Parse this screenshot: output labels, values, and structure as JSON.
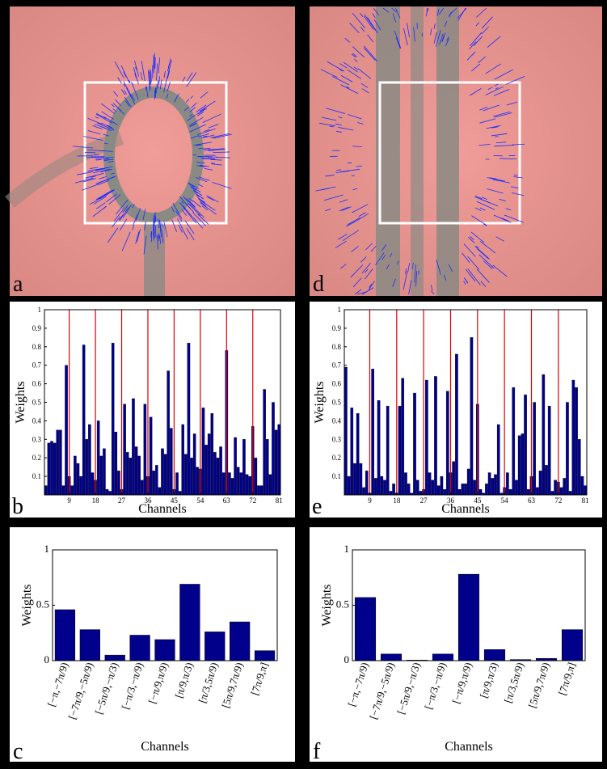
{
  "images": [
    {
      "label": "a"
    },
    {
      "label": "d"
    }
  ],
  "chart_data": [
    {
      "type": "bar",
      "panel_label": "b",
      "xlabel": "Channels",
      "ylabel": "Weights",
      "color": "#00008b",
      "x": [
        1,
        2,
        3,
        4,
        5,
        6,
        7,
        8,
        9,
        10,
        11,
        12,
        13,
        14,
        15,
        16,
        17,
        18,
        19,
        20,
        21,
        22,
        23,
        24,
        25,
        26,
        27,
        28,
        29,
        30,
        31,
        32,
        33,
        34,
        35,
        36,
        37,
        38,
        39,
        40,
        41,
        42,
        43,
        44,
        45,
        46,
        47,
        48,
        49,
        50,
        51,
        52,
        53,
        54,
        55,
        56,
        57,
        58,
        59,
        60,
        61,
        62,
        63,
        64,
        65,
        66,
        67,
        68,
        69,
        70,
        71,
        72,
        73,
        74,
        75,
        76,
        77,
        78,
        79,
        80,
        81
      ],
      "values": [
        0.05,
        0.28,
        0.29,
        0.28,
        0.35,
        0.35,
        0.05,
        0.7,
        0.1,
        0.05,
        0.21,
        0.17,
        0.1,
        0.81,
        0.3,
        0.38,
        0.12,
        0.08,
        0.4,
        0.21,
        0.25,
        0.03,
        0.02,
        0.82,
        0.34,
        0.13,
        0.03,
        0.49,
        0.23,
        0.2,
        0.52,
        0.26,
        0.21,
        0.08,
        0.49,
        0.1,
        0.42,
        0.13,
        0.16,
        0.04,
        0.25,
        0.22,
        0.67,
        0.36,
        0.03,
        0.12,
        0.02,
        0.38,
        0.22,
        0.82,
        0.2,
        0.33,
        0.15,
        0.14,
        0.47,
        0.27,
        0.33,
        0.44,
        0.23,
        0.2,
        0.26,
        0.12,
        0.78,
        0.12,
        0.09,
        0.31,
        0.15,
        0.12,
        0.3,
        0.11,
        0.1,
        0.37,
        0.2,
        0.05,
        0.05,
        0.57,
        0.3,
        0.11,
        0.5,
        0.35,
        0.38
      ],
      "xlim": [
        0.5,
        81.5
      ],
      "xticks": [
        9,
        18,
        27,
        36,
        45,
        54,
        63,
        72,
        81
      ],
      "ylim": [
        0,
        1
      ],
      "yticks": [
        0.1,
        0.2,
        0.3,
        0.4,
        0.5,
        0.6,
        0.7,
        0.8,
        0.9,
        1
      ],
      "vlines": [
        9,
        18,
        27,
        36,
        45,
        54,
        63,
        72
      ],
      "vline_color": "#e00000"
    },
    {
      "type": "bar",
      "panel_label": "e",
      "xlabel": "Channels",
      "ylabel": "Weights",
      "color": "#00008b",
      "x": [
        1,
        2,
        3,
        4,
        5,
        6,
        7,
        8,
        9,
        10,
        11,
        12,
        13,
        14,
        15,
        16,
        17,
        18,
        19,
        20,
        21,
        22,
        23,
        24,
        25,
        26,
        27,
        28,
        29,
        30,
        31,
        32,
        33,
        34,
        35,
        36,
        37,
        38,
        39,
        40,
        41,
        42,
        43,
        44,
        45,
        46,
        47,
        48,
        49,
        50,
        51,
        52,
        53,
        54,
        55,
        56,
        57,
        58,
        59,
        60,
        61,
        62,
        63,
        64,
        65,
        66,
        67,
        68,
        69,
        70,
        71,
        72,
        73,
        74,
        75,
        76,
        77,
        78,
        79,
        80,
        81
      ],
      "values": [
        0.69,
        0.1,
        0.47,
        0.17,
        0.44,
        0.17,
        0.04,
        0.13,
        0.01,
        0.68,
        0.09,
        0.51,
        0.1,
        0.08,
        0.48,
        0.02,
        0.06,
        0.01,
        0.48,
        0.63,
        0.12,
        0.06,
        0.01,
        0.55,
        0.08,
        0.02,
        0.03,
        0.62,
        0.12,
        0.08,
        0.64,
        0.05,
        0.1,
        0.03,
        0.56,
        0.12,
        0.18,
        0.76,
        0.03,
        0.06,
        0.06,
        0.14,
        0.85,
        0.08,
        0.49,
        0.03,
        0.01,
        0.06,
        0.12,
        0.09,
        0.11,
        0.38,
        0.01,
        0.04,
        0.12,
        0.03,
        0.58,
        0.08,
        0.32,
        0.33,
        0.54,
        0.03,
        0.1,
        0.5,
        0.04,
        0.13,
        0.65,
        0.16,
        0.48,
        0.02,
        0.08,
        0.07,
        0.04,
        0.09,
        0.5,
        0.02,
        0.62,
        0.58,
        0.3,
        0.1,
        0.05
      ],
      "xlim": [
        0.5,
        81.5
      ],
      "xticks": [
        9,
        18,
        27,
        36,
        45,
        54,
        63,
        72,
        81
      ],
      "ylim": [
        0,
        1
      ],
      "yticks": [
        0.1,
        0.2,
        0.3,
        0.4,
        0.5,
        0.6,
        0.7,
        0.8,
        0.9,
        1
      ],
      "vlines": [
        9,
        18,
        27,
        36,
        45,
        54,
        63,
        72
      ],
      "vline_color": "#e00000"
    },
    {
      "type": "bar",
      "panel_label": "c",
      "xlabel": "Channels",
      "ylabel": "Weights",
      "color": "#00008b",
      "categories": [
        "[−π,−7π/9)",
        "[−7π/9,−5π/9)",
        "[−5π/9,−π/3)",
        "[−π/3,−π/9)",
        "[−π/9,π/9)",
        "[π/9,π/3)",
        "[π/3,5π/9)",
        "[5π/9,7π/9)",
        "[7π/9,π]"
      ],
      "values": [
        0.46,
        0.28,
        0.05,
        0.23,
        0.19,
        0.69,
        0.26,
        0.35,
        0.09
      ],
      "ylim": [
        0,
        1
      ],
      "yticks": [
        0,
        0.5,
        1
      ]
    },
    {
      "type": "bar",
      "panel_label": "f",
      "xlabel": "Channels",
      "ylabel": "Weights",
      "color": "#00008b",
      "categories": [
        "[−π,−7π/9)",
        "[−7π/9,−5π/9)",
        "[−5π/9,−π/3)",
        "[−π/3,−π/9)",
        "[−π/9,π/9)",
        "[π/9,π/3)",
        "[π/3,5π/9)",
        "[5π/9,7π/9)",
        "[7π/9,π]"
      ],
      "values": [
        0.57,
        0.06,
        0.005,
        0.06,
        0.78,
        0.1,
        0.01,
        0.02,
        0.28
      ],
      "ylim": [
        0,
        1
      ],
      "yticks": [
        0,
        0.5,
        1
      ]
    }
  ]
}
